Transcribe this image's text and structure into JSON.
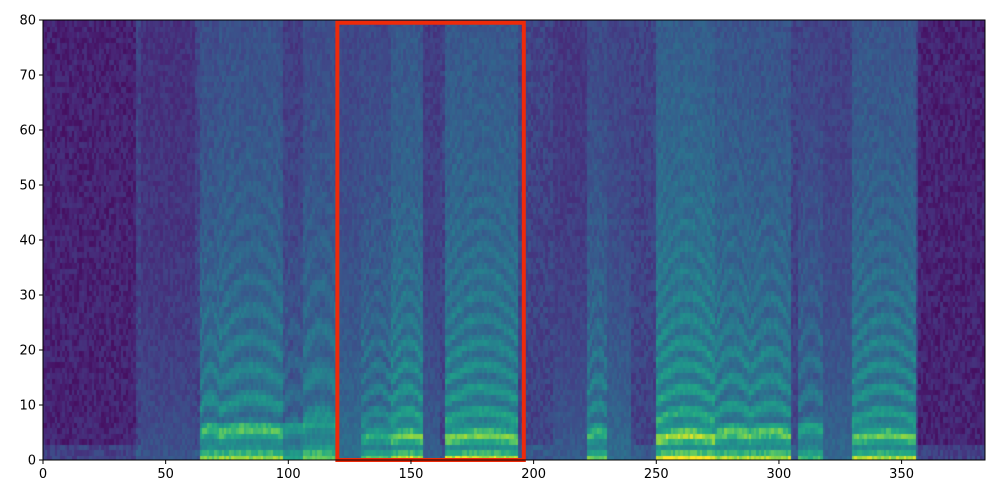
{
  "chart_data": {
    "type": "heatmap",
    "subtype": "mel-spectrogram",
    "title": "",
    "xlabel": "",
    "ylabel": "",
    "colormap": "viridis",
    "xlim": [
      0,
      384
    ],
    "ylim": [
      0,
      80
    ],
    "x_ticks": [
      0,
      50,
      100,
      150,
      200,
      250,
      300,
      350
    ],
    "y_ticks": [
      0,
      10,
      20,
      30,
      40,
      50,
      60,
      70,
      80
    ],
    "x_tick_labels": [
      "0",
      "50",
      "100",
      "150",
      "200",
      "250",
      "300",
      "350"
    ],
    "y_tick_labels": [
      "0",
      "10",
      "20",
      "30",
      "40",
      "50",
      "60",
      "70",
      "80"
    ],
    "value_range": [
      0,
      1
    ],
    "silence_regions": [
      [
        0,
        38
      ],
      [
        357,
        384
      ]
    ],
    "gaps": [
      [
        162,
        164
      ],
      [
        198,
        208
      ],
      [
        240,
        248
      ],
      [
        305,
        308
      ]
    ],
    "segments": [
      {
        "start": 40,
        "end": 62,
        "level": 0.32,
        "f0": 0,
        "decay": 0.05
      },
      {
        "start": 64,
        "end": 72,
        "level": 0.62,
        "f0": 4.5,
        "decay": 0.022
      },
      {
        "start": 72,
        "end": 98,
        "level": 0.64,
        "f0": 4.5,
        "decay": 0.02
      },
      {
        "start": 98,
        "end": 106,
        "level": 0.5,
        "f0": 5,
        "decay": 0.03
      },
      {
        "start": 106,
        "end": 120,
        "level": 0.6,
        "f0": 6.5,
        "decay": 0.022
      },
      {
        "start": 120,
        "end": 130,
        "level": 0.46,
        "f0": 0,
        "decay": 0.035
      },
      {
        "start": 130,
        "end": 142,
        "level": 0.58,
        "f0": 3.5,
        "decay": 0.022
      },
      {
        "start": 142,
        "end": 155,
        "level": 0.68,
        "f0": 3.5,
        "decay": 0.018
      },
      {
        "start": 155,
        "end": 162,
        "level": 0.38,
        "f0": 0,
        "decay": 0.04
      },
      {
        "start": 164,
        "end": 194,
        "level": 0.68,
        "f0": 3.5,
        "decay": 0.016
      },
      {
        "start": 208,
        "end": 222,
        "level": 0.36,
        "f0": 0,
        "decay": 0.045
      },
      {
        "start": 222,
        "end": 230,
        "level": 0.6,
        "f0": 4,
        "decay": 0.025
      },
      {
        "start": 230,
        "end": 240,
        "level": 0.44,
        "f0": 0,
        "decay": 0.035
      },
      {
        "start": 250,
        "end": 274,
        "level": 0.72,
        "f0": 3.5,
        "decay": 0.015
      },
      {
        "start": 274,
        "end": 288,
        "level": 0.66,
        "f0": 4,
        "decay": 0.018
      },
      {
        "start": 288,
        "end": 305,
        "level": 0.66,
        "f0": 4,
        "decay": 0.02
      },
      {
        "start": 308,
        "end": 318,
        "level": 0.55,
        "f0": 5,
        "decay": 0.025
      },
      {
        "start": 318,
        "end": 330,
        "level": 0.42,
        "f0": 0,
        "decay": 0.04
      },
      {
        "start": 330,
        "end": 356,
        "level": 0.66,
        "f0": 3.5,
        "decay": 0.018
      }
    ],
    "annotations": [
      {
        "type": "rectangle",
        "x_range": [
          120,
          196
        ],
        "y_range": [
          0,
          79.5
        ],
        "color": "#ee2a0a"
      }
    ],
    "grid": false,
    "legend": "none"
  }
}
